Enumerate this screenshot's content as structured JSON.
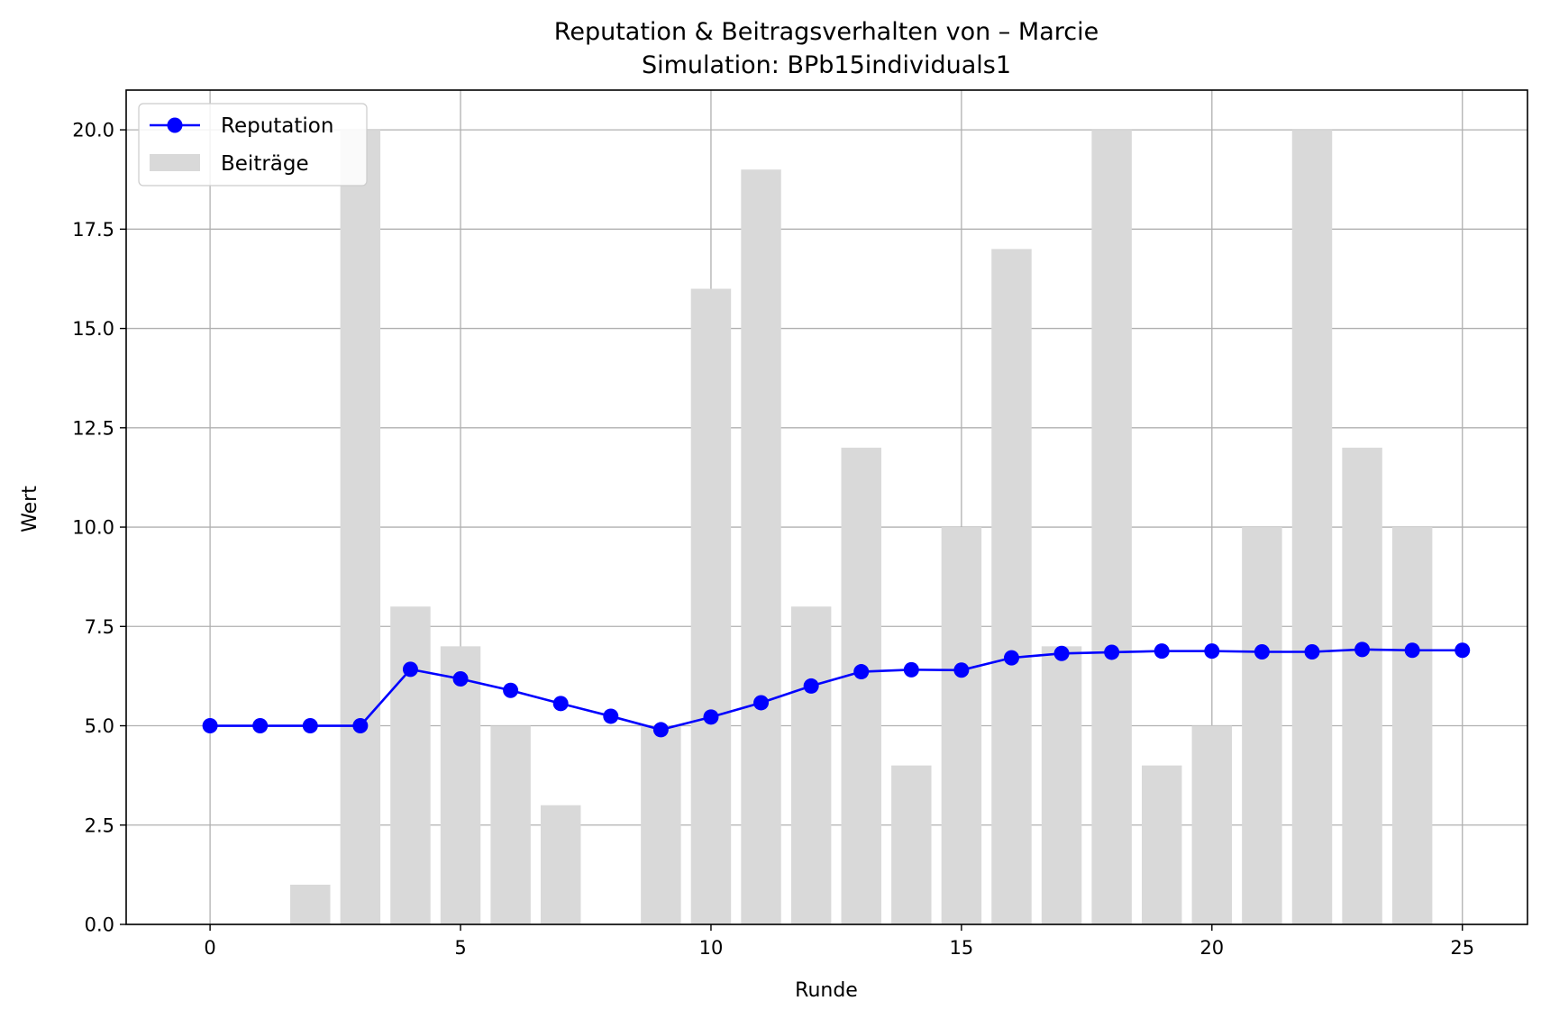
{
  "chart_data": {
    "type": "bar",
    "title": "Reputation & Beitragsverhalten von – Marcie",
    "subtitle": "Simulation: BPb15individuals1",
    "xlabel": "Runde",
    "ylabel": "Wert",
    "xlim": [
      -1.675,
      26.3
    ],
    "ylim": [
      0,
      21
    ],
    "xticks": [
      0,
      5,
      10,
      15,
      20,
      25
    ],
    "xtick_labels": [
      "0",
      "5",
      "10",
      "15",
      "20",
      "25"
    ],
    "yticks": [
      0,
      2.5,
      5,
      7.5,
      10,
      12.5,
      15,
      17.5,
      20
    ],
    "ytick_labels": [
      "0.0",
      "2.5",
      "5.0",
      "7.5",
      "10.0",
      "12.5",
      "15.0",
      "17.5",
      "20.0"
    ],
    "grid": true,
    "legend_position": "top-left",
    "bars": {
      "name": "Beiträge",
      "color": "#d9d9d9",
      "x": [
        0,
        1,
        2,
        3,
        4,
        5,
        6,
        7,
        8,
        9,
        10,
        11,
        12,
        13,
        14,
        15,
        16,
        17,
        18,
        19,
        20,
        21,
        22,
        23,
        24
      ],
      "values": [
        0,
        0,
        1,
        20,
        8,
        7,
        5,
        3,
        0,
        5,
        16,
        19,
        8,
        12,
        4,
        10,
        17,
        7,
        20,
        4,
        5,
        10,
        20,
        12,
        10
      ]
    },
    "line": {
      "name": "Reputation",
      "color": "#0000ff",
      "x": [
        0,
        1,
        2,
        3,
        4,
        5,
        6,
        7,
        8,
        9,
        10,
        11,
        12,
        13,
        14,
        15,
        16,
        17,
        18,
        19,
        20,
        21,
        22,
        23,
        24,
        25
      ],
      "values": [
        5.0,
        5.0,
        5.0,
        5.0,
        6.42,
        6.18,
        5.89,
        5.56,
        5.24,
        4.9,
        5.22,
        5.58,
        6.0,
        6.36,
        6.41,
        6.4,
        6.71,
        6.82,
        6.85,
        6.88,
        6.88,
        6.86,
        6.86,
        6.92,
        6.9,
        6.9
      ]
    }
  }
}
